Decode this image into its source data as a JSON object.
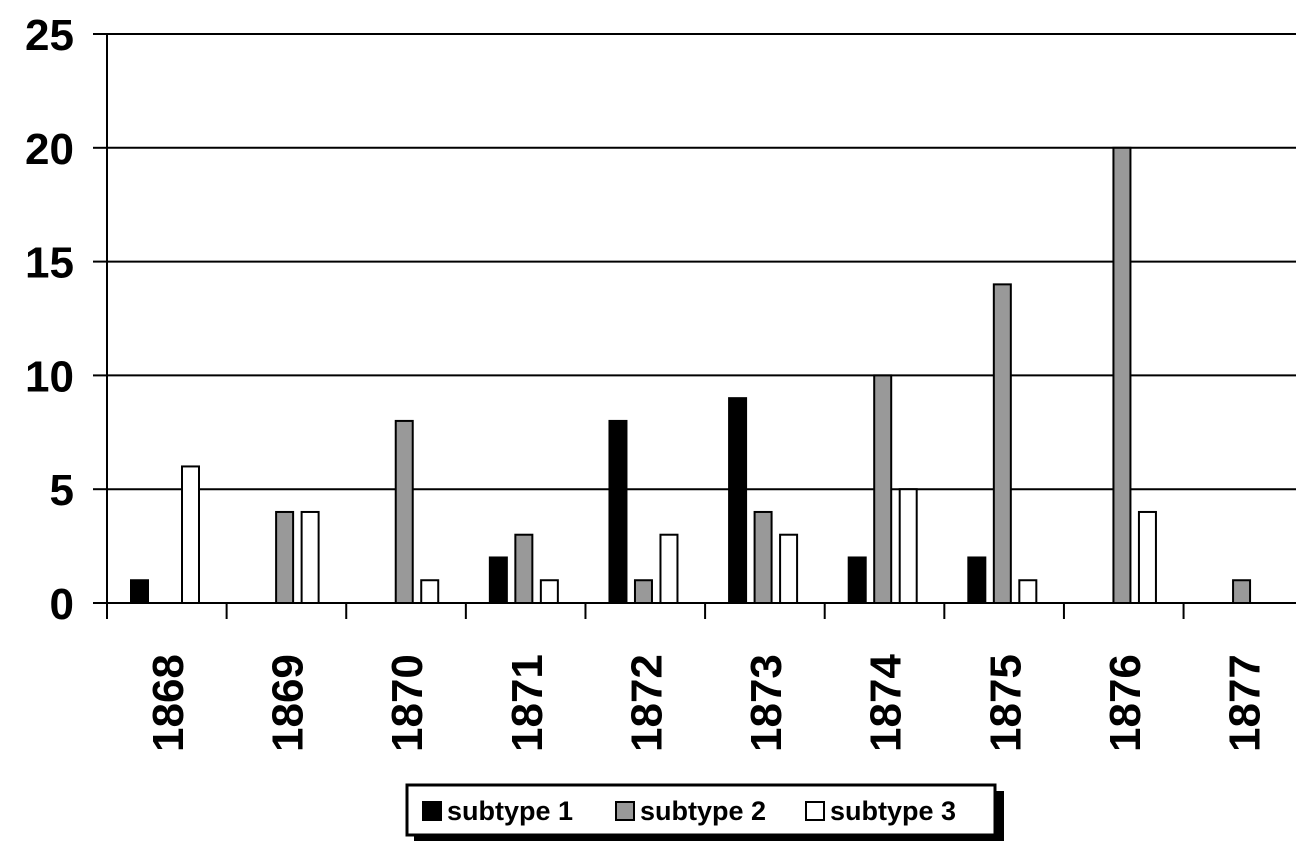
{
  "chart_data": {
    "type": "bar",
    "categories": [
      "1868",
      "1869",
      "1870",
      "1871",
      "1872",
      "1873",
      "1874",
      "1875",
      "1876",
      "1877"
    ],
    "series": [
      {
        "name": "subtype 1",
        "color": "#000000",
        "values": [
          1,
          0,
          0,
          2,
          8,
          9,
          2,
          2,
          0,
          0
        ]
      },
      {
        "name": "subtype 2",
        "color": "#999999",
        "values": [
          0,
          4,
          8,
          3,
          1,
          4,
          10,
          14,
          20,
          1
        ]
      },
      {
        "name": "subtype 3",
        "color": "#ffffff",
        "values": [
          6,
          4,
          1,
          1,
          3,
          3,
          5,
          1,
          4,
          0
        ]
      }
    ],
    "ylim": [
      0,
      25
    ],
    "yticks": [
      "0",
      "5",
      "10",
      "15",
      "20",
      "25"
    ],
    "grid": true,
    "legend_position": "bottom",
    "x_tick_rotation": "vertical"
  }
}
